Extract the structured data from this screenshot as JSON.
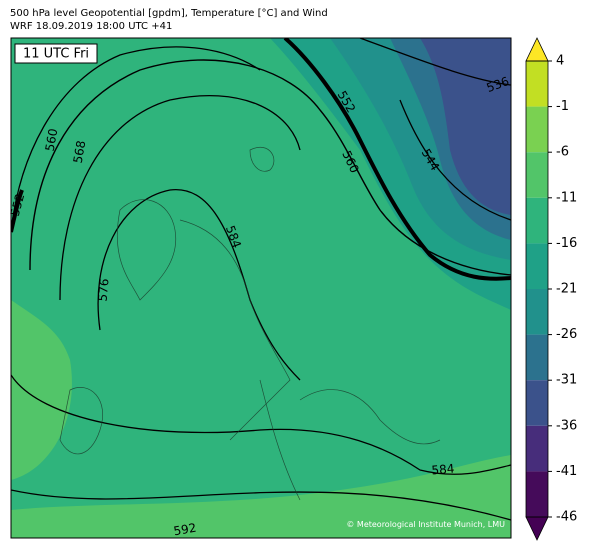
{
  "header": {
    "title": "500 hPa level Geopotential [gpdm], Temperature [°C] and Wind",
    "subtitle": "WRF 18.09.2019 18:00 UTC +41"
  },
  "time_label": "11 UTC Fri",
  "contour_labels": [
    "552",
    "560",
    "568",
    "576",
    "584",
    "552",
    "560",
    "544",
    "536",
    "584",
    "592"
  ],
  "colorbar": {
    "ticks": [
      4,
      -1,
      -6,
      -11,
      -16,
      -21,
      -26,
      -31,
      -36,
      -41,
      -46
    ],
    "colors": [
      "#c2df23",
      "#7ad151",
      "#52c569",
      "#2fb47c",
      "#1fa187",
      "#21918c",
      "#2c728e",
      "#3b528b",
      "#472d7b",
      "#450b5a"
    ],
    "over_color": "#fde725",
    "under_color": "#440154"
  },
  "copyright": "© Meteorological Institute Munich, LMU"
}
